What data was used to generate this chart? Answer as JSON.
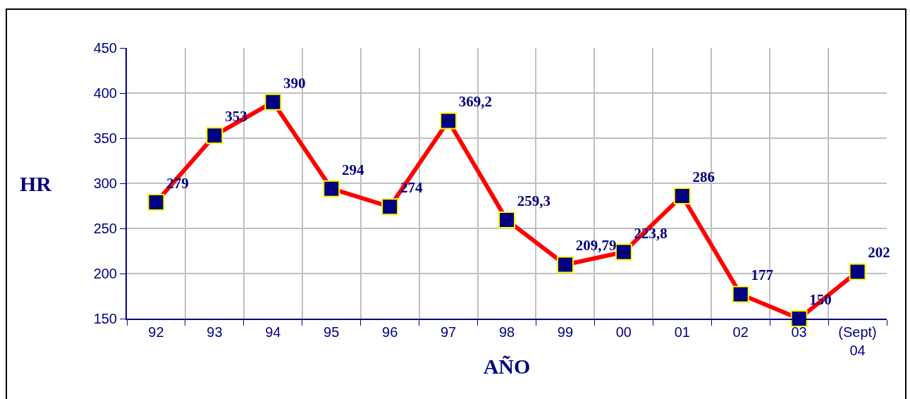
{
  "chart_data": {
    "type": "line",
    "xlabel": "AÑO",
    "ylabel": "HR",
    "categories": [
      "92",
      "93",
      "94",
      "95",
      "96",
      "97",
      "98",
      "99",
      "00",
      "01",
      "02",
      "03",
      "(Sept)\n04"
    ],
    "series": [
      {
        "color": "#ff0000",
        "values": [
          279,
          353,
          390,
          294,
          274,
          369.2,
          259.3,
          209.79,
          223.8,
          286,
          177,
          150,
          202
        ],
        "value_labels": [
          "279",
          "353",
          "390",
          "294",
          "274",
          "369,2",
          "259,3",
          "209,79",
          "223,8",
          "286",
          "177",
          "150",
          "202"
        ]
      }
    ],
    "ylim": [
      150,
      450
    ],
    "yticks": [
      150,
      200,
      250,
      300,
      350,
      400,
      450
    ],
    "grid": true,
    "legend": false,
    "marker": "square",
    "line_style": "solid"
  }
}
